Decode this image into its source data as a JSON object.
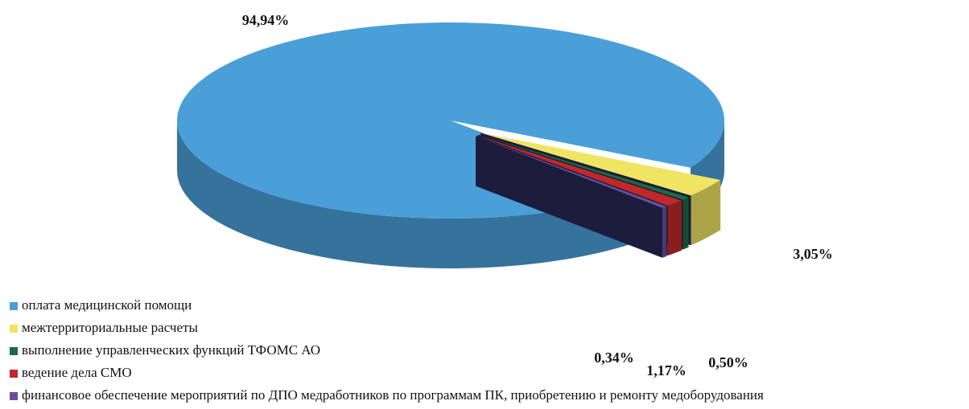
{
  "chart_data": {
    "type": "pie",
    "categories": [
      "оплата медицинской помощи",
      "межтерриториальные расчеты",
      "выполнение управленческих функций ТФОМС АО",
      "ведение дела СМО",
      "финансовое обеспечение мероприятий по ДПО медработников по программам ПК, приобретению и ремонту медоборудования"
    ],
    "values": [
      94.94,
      3.05,
      0.5,
      1.17,
      0.34
    ],
    "value_labels": [
      "94,94%",
      "3,05%",
      "0,50%",
      "1,17%",
      "0,34%"
    ],
    "colors": [
      "#4a9fd8",
      "#f0e463",
      "#1e6b3e",
      "#c0282a",
      "#6a4e9a"
    ],
    "legend": "bottom-left"
  }
}
